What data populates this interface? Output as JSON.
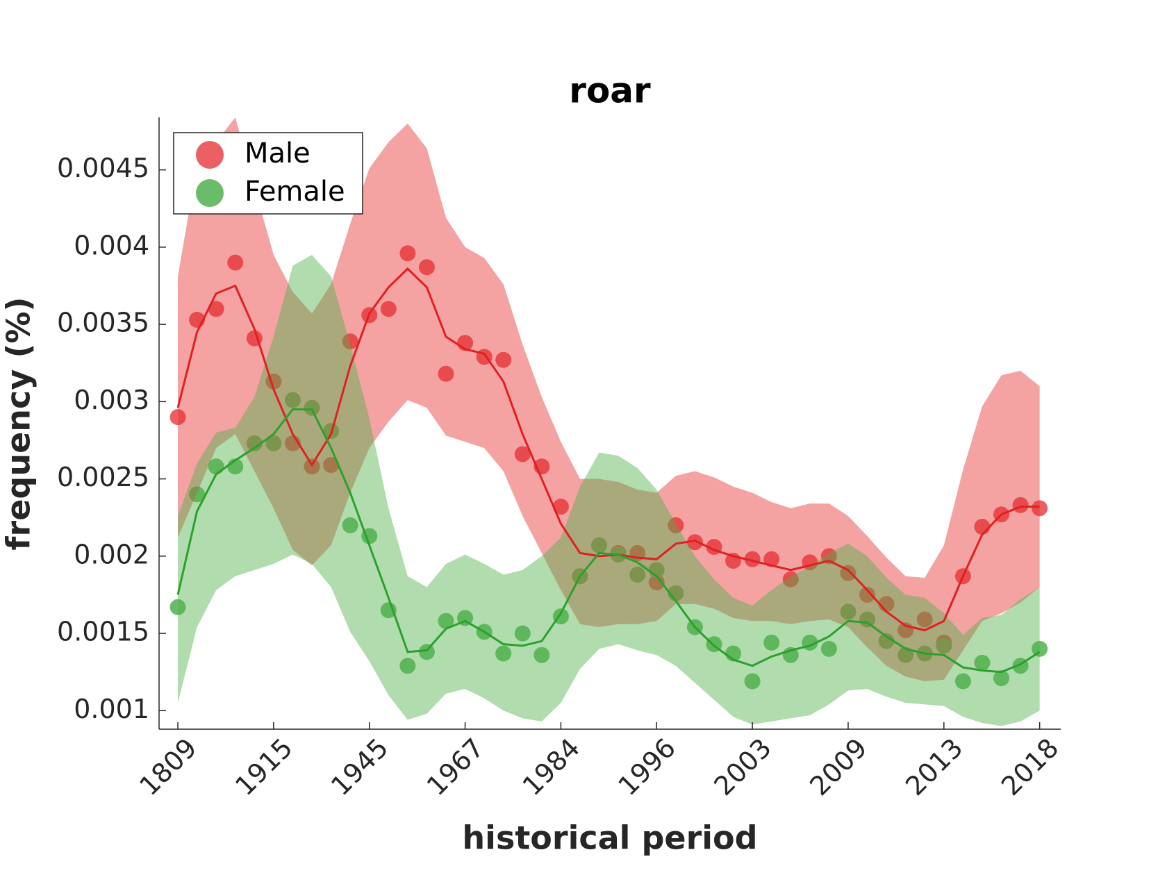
{
  "chart_data": {
    "type": "line",
    "title": "roar",
    "x_label": "historical period",
    "y_label": "frequency (%)",
    "categories": [
      "1809",
      null,
      null,
      null,
      null,
      "1915",
      null,
      null,
      null,
      null,
      "1945",
      null,
      null,
      null,
      null,
      "1967",
      null,
      null,
      null,
      null,
      "1984",
      null,
      null,
      null,
      null,
      "1996",
      null,
      null,
      null,
      null,
      "2003",
      null,
      null,
      null,
      null,
      "2009",
      null,
      null,
      null,
      null,
      "2013",
      null,
      null,
      null,
      null,
      "2018"
    ],
    "ylim": [
      0.00088,
      0.00484
    ],
    "yticks": [
      0.001,
      0.0015,
      0.002,
      0.0025,
      0.003,
      0.0035,
      0.004,
      0.0045
    ],
    "legend": "upper left",
    "series": [
      {
        "name": "Male",
        "color": "#ec6063",
        "line_color": "#e02020",
        "band_color": "#e73030",
        "values": [
          0.0029,
          0.00353,
          0.0036,
          0.0039,
          0.00341,
          0.00313,
          0.00273,
          0.00258,
          0.00259,
          0.00339,
          0.00356,
          0.0036,
          0.00396,
          0.00387,
          0.00318,
          0.00338,
          0.00329,
          0.00327,
          0.00266,
          0.00258,
          0.00232,
          0.00187,
          0.00207,
          0.00202,
          0.00202,
          0.00183,
          0.0022,
          0.00209,
          0.00206,
          0.00197,
          0.00198,
          0.00198,
          0.00185,
          0.00196,
          0.002,
          0.00189,
          0.00175,
          0.00169,
          0.00152,
          0.00159,
          0.00144,
          0.00187,
          0.00219,
          0.00227,
          0.00233,
          0.00231
        ],
        "smoothed": [
          0.00296,
          0.00345,
          0.0037,
          0.00375,
          0.00347,
          0.00308,
          0.00279,
          0.00259,
          0.00279,
          0.00323,
          0.00357,
          0.00374,
          0.00386,
          0.00374,
          0.00342,
          0.00334,
          0.00331,
          0.00313,
          0.00279,
          0.0025,
          0.00221,
          0.00202,
          0.002,
          0.00201,
          0.00199,
          0.00198,
          0.00208,
          0.0021,
          0.00204,
          0.002,
          0.00197,
          0.00194,
          0.00191,
          0.00194,
          0.00197,
          0.00191,
          0.00178,
          0.00164,
          0.00155,
          0.00152,
          0.00158,
          0.00187,
          0.00214,
          0.00227,
          0.00232,
          0.00232
        ],
        "upper": [
          0.00381,
          0.00453,
          0.00468,
          0.00484,
          0.00439,
          0.00395,
          0.00371,
          0.00357,
          0.00376,
          0.00415,
          0.00451,
          0.00468,
          0.0048,
          0.00464,
          0.00419,
          0.004,
          0.00393,
          0.00376,
          0.00337,
          0.00303,
          0.00274,
          0.0025,
          0.0025,
          0.00248,
          0.00243,
          0.00241,
          0.00252,
          0.00255,
          0.00251,
          0.00245,
          0.00241,
          0.00235,
          0.00231,
          0.00234,
          0.00234,
          0.00226,
          0.00213,
          0.00199,
          0.00187,
          0.00186,
          0.00207,
          0.00256,
          0.00297,
          0.00317,
          0.0032,
          0.0031
        ],
        "lower": [
          0.00212,
          0.00241,
          0.0027,
          0.00279,
          0.00255,
          0.00231,
          0.00204,
          0.00194,
          0.00207,
          0.00241,
          0.0027,
          0.00287,
          0.00301,
          0.00296,
          0.00278,
          0.00274,
          0.0027,
          0.00255,
          0.00226,
          0.00202,
          0.00178,
          0.00156,
          0.00154,
          0.00156,
          0.00156,
          0.00158,
          0.00169,
          0.00169,
          0.00166,
          0.0016,
          0.00158,
          0.00158,
          0.00156,
          0.00158,
          0.00159,
          0.00154,
          0.00141,
          0.00129,
          0.00122,
          0.00119,
          0.0012,
          0.00139,
          0.00158,
          0.00163,
          0.0017,
          0.0018
        ]
      },
      {
        "name": "Female",
        "color": "#6abc68",
        "line_color": "#2ca02c",
        "band_color": "#4fb14b",
        "values": [
          0.00167,
          0.0024,
          0.00258,
          0.00258,
          0.00273,
          0.00273,
          0.00301,
          0.00296,
          0.00281,
          0.0022,
          0.00213,
          0.00165,
          0.00129,
          0.00138,
          0.00158,
          0.0016,
          0.00151,
          0.00137,
          0.0015,
          0.00136,
          0.00161,
          0.00187,
          0.00207,
          0.00201,
          0.00188,
          0.00191,
          0.00176,
          0.00154,
          0.00143,
          0.00137,
          0.00119,
          0.00144,
          0.00136,
          0.00144,
          0.0014,
          0.00164,
          0.00159,
          0.00145,
          0.00136,
          0.00137,
          0.00142,
          0.00119,
          0.00131,
          0.00121,
          0.00129,
          0.0014
        ],
        "smoothed": [
          0.00175,
          0.00229,
          0.00253,
          0.00262,
          0.0027,
          0.00279,
          0.00295,
          0.00295,
          0.0027,
          0.00241,
          0.00207,
          0.00173,
          0.00138,
          0.00139,
          0.00153,
          0.00158,
          0.00151,
          0.00143,
          0.00142,
          0.00145,
          0.00163,
          0.00187,
          0.00202,
          0.00201,
          0.00196,
          0.00187,
          0.00171,
          0.00154,
          0.00142,
          0.00133,
          0.00129,
          0.00135,
          0.00139,
          0.00142,
          0.00148,
          0.00158,
          0.00157,
          0.00148,
          0.0014,
          0.00137,
          0.00136,
          0.00128,
          0.00126,
          0.00125,
          0.0013,
          0.00138
        ],
        "upper": [
          0.00226,
          0.0026,
          0.0028,
          0.00283,
          0.00303,
          0.00342,
          0.00388,
          0.00395,
          0.00381,
          0.00337,
          0.00289,
          0.00231,
          0.00187,
          0.0018,
          0.00195,
          0.00201,
          0.00195,
          0.00188,
          0.00191,
          0.002,
          0.00212,
          0.00245,
          0.00267,
          0.00265,
          0.00257,
          0.00243,
          0.00221,
          0.002,
          0.00185,
          0.00173,
          0.00168,
          0.00178,
          0.00187,
          0.00193,
          0.00202,
          0.00208,
          0.002,
          0.00186,
          0.00175,
          0.00173,
          0.00163,
          0.00149,
          0.0016,
          0.00162,
          0.00172,
          0.0018
        ],
        "lower": [
          0.00105,
          0.00154,
          0.00178,
          0.00187,
          0.00191,
          0.00195,
          0.00201,
          0.00195,
          0.0018,
          0.00151,
          0.00132,
          0.0011,
          0.00094,
          0.00098,
          0.00111,
          0.00114,
          0.00108,
          0.001,
          0.00095,
          0.00093,
          0.00105,
          0.00127,
          0.0014,
          0.00143,
          0.00139,
          0.00136,
          0.00129,
          0.00118,
          0.00107,
          0.00096,
          0.00091,
          0.00093,
          0.00095,
          0.00097,
          0.00104,
          0.00113,
          0.00114,
          0.00109,
          0.00105,
          0.00104,
          0.00103,
          0.00096,
          0.00092,
          0.0009,
          0.00093,
          0.001
        ]
      }
    ]
  }
}
